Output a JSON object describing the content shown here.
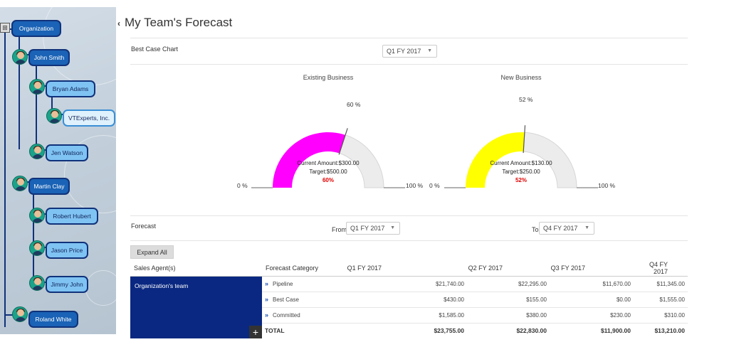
{
  "page": {
    "title": "My Team's Forecast"
  },
  "tree": {
    "nodes": [
      {
        "id": "organization",
        "label": "Organization"
      },
      {
        "id": "john-smith",
        "label": "John Smith"
      },
      {
        "id": "bryan-adams",
        "label": "Bryan Adams"
      },
      {
        "id": "vtexperts",
        "label": "VTExperts, Inc."
      },
      {
        "id": "jen-watson",
        "label": "Jen Watson"
      },
      {
        "id": "martin-clay",
        "label": "Martin Clay"
      },
      {
        "id": "robert-hubert",
        "label": "Robert Hubert"
      },
      {
        "id": "jason-price",
        "label": "Jason Price"
      },
      {
        "id": "jimmy-john",
        "label": "Jimmy John"
      },
      {
        "id": "roland-white",
        "label": "Roland White"
      }
    ]
  },
  "best_case": {
    "label": "Best Case Chart",
    "period": "Q1 FY 2017",
    "gauges": [
      {
        "title": "Existing Business",
        "fraction": 0.6,
        "value_label": "60 %",
        "current_amount": "Current Amount:$300.00",
        "target": "Target:$500.00",
        "percent": "60%",
        "min_label": "0 %",
        "max_label": "100 %",
        "color": "#ff00ff"
      },
      {
        "title": "New Business",
        "fraction": 0.52,
        "value_label": "52 %",
        "current_amount": "Current Amount:$130.00",
        "target": "Target:$250.00",
        "percent": "52%",
        "min_label": "0 %",
        "max_label": "100 %",
        "color": "#ffff00"
      }
    ]
  },
  "forecast": {
    "label": "Forecast",
    "from_label": "From",
    "from_value": "Q1 FY 2017",
    "to_label": "To",
    "to_value": "Q4 FY 2017",
    "expand_all": "Expand All",
    "headers": [
      "Sales Agent(s)",
      "Forecast Category",
      "Q1 FY 2017",
      "Q2 FY 2017",
      "Q3 FY 2017",
      "Q4 FY 2017"
    ],
    "team": "Organization's team",
    "rows": [
      {
        "category": "Pipeline",
        "values": [
          "$21,740.00",
          "$22,295.00",
          "$11,670.00",
          "$11,345.00"
        ]
      },
      {
        "category": "Best Case",
        "values": [
          "$430.00",
          "$155.00",
          "$0.00",
          "$1,555.00"
        ]
      },
      {
        "category": "Committed",
        "values": [
          "$1,585.00",
          "$380.00",
          "$230.00",
          "$310.00"
        ]
      }
    ],
    "total": {
      "label": "TOTAL",
      "values": [
        "$23,755.00",
        "$22,830.00",
        "$11,900.00",
        "$13,210.00"
      ]
    }
  },
  "colors": {
    "accent": "#0a2881",
    "node": "#1a63b6",
    "node_light": "#7fc3f3"
  }
}
